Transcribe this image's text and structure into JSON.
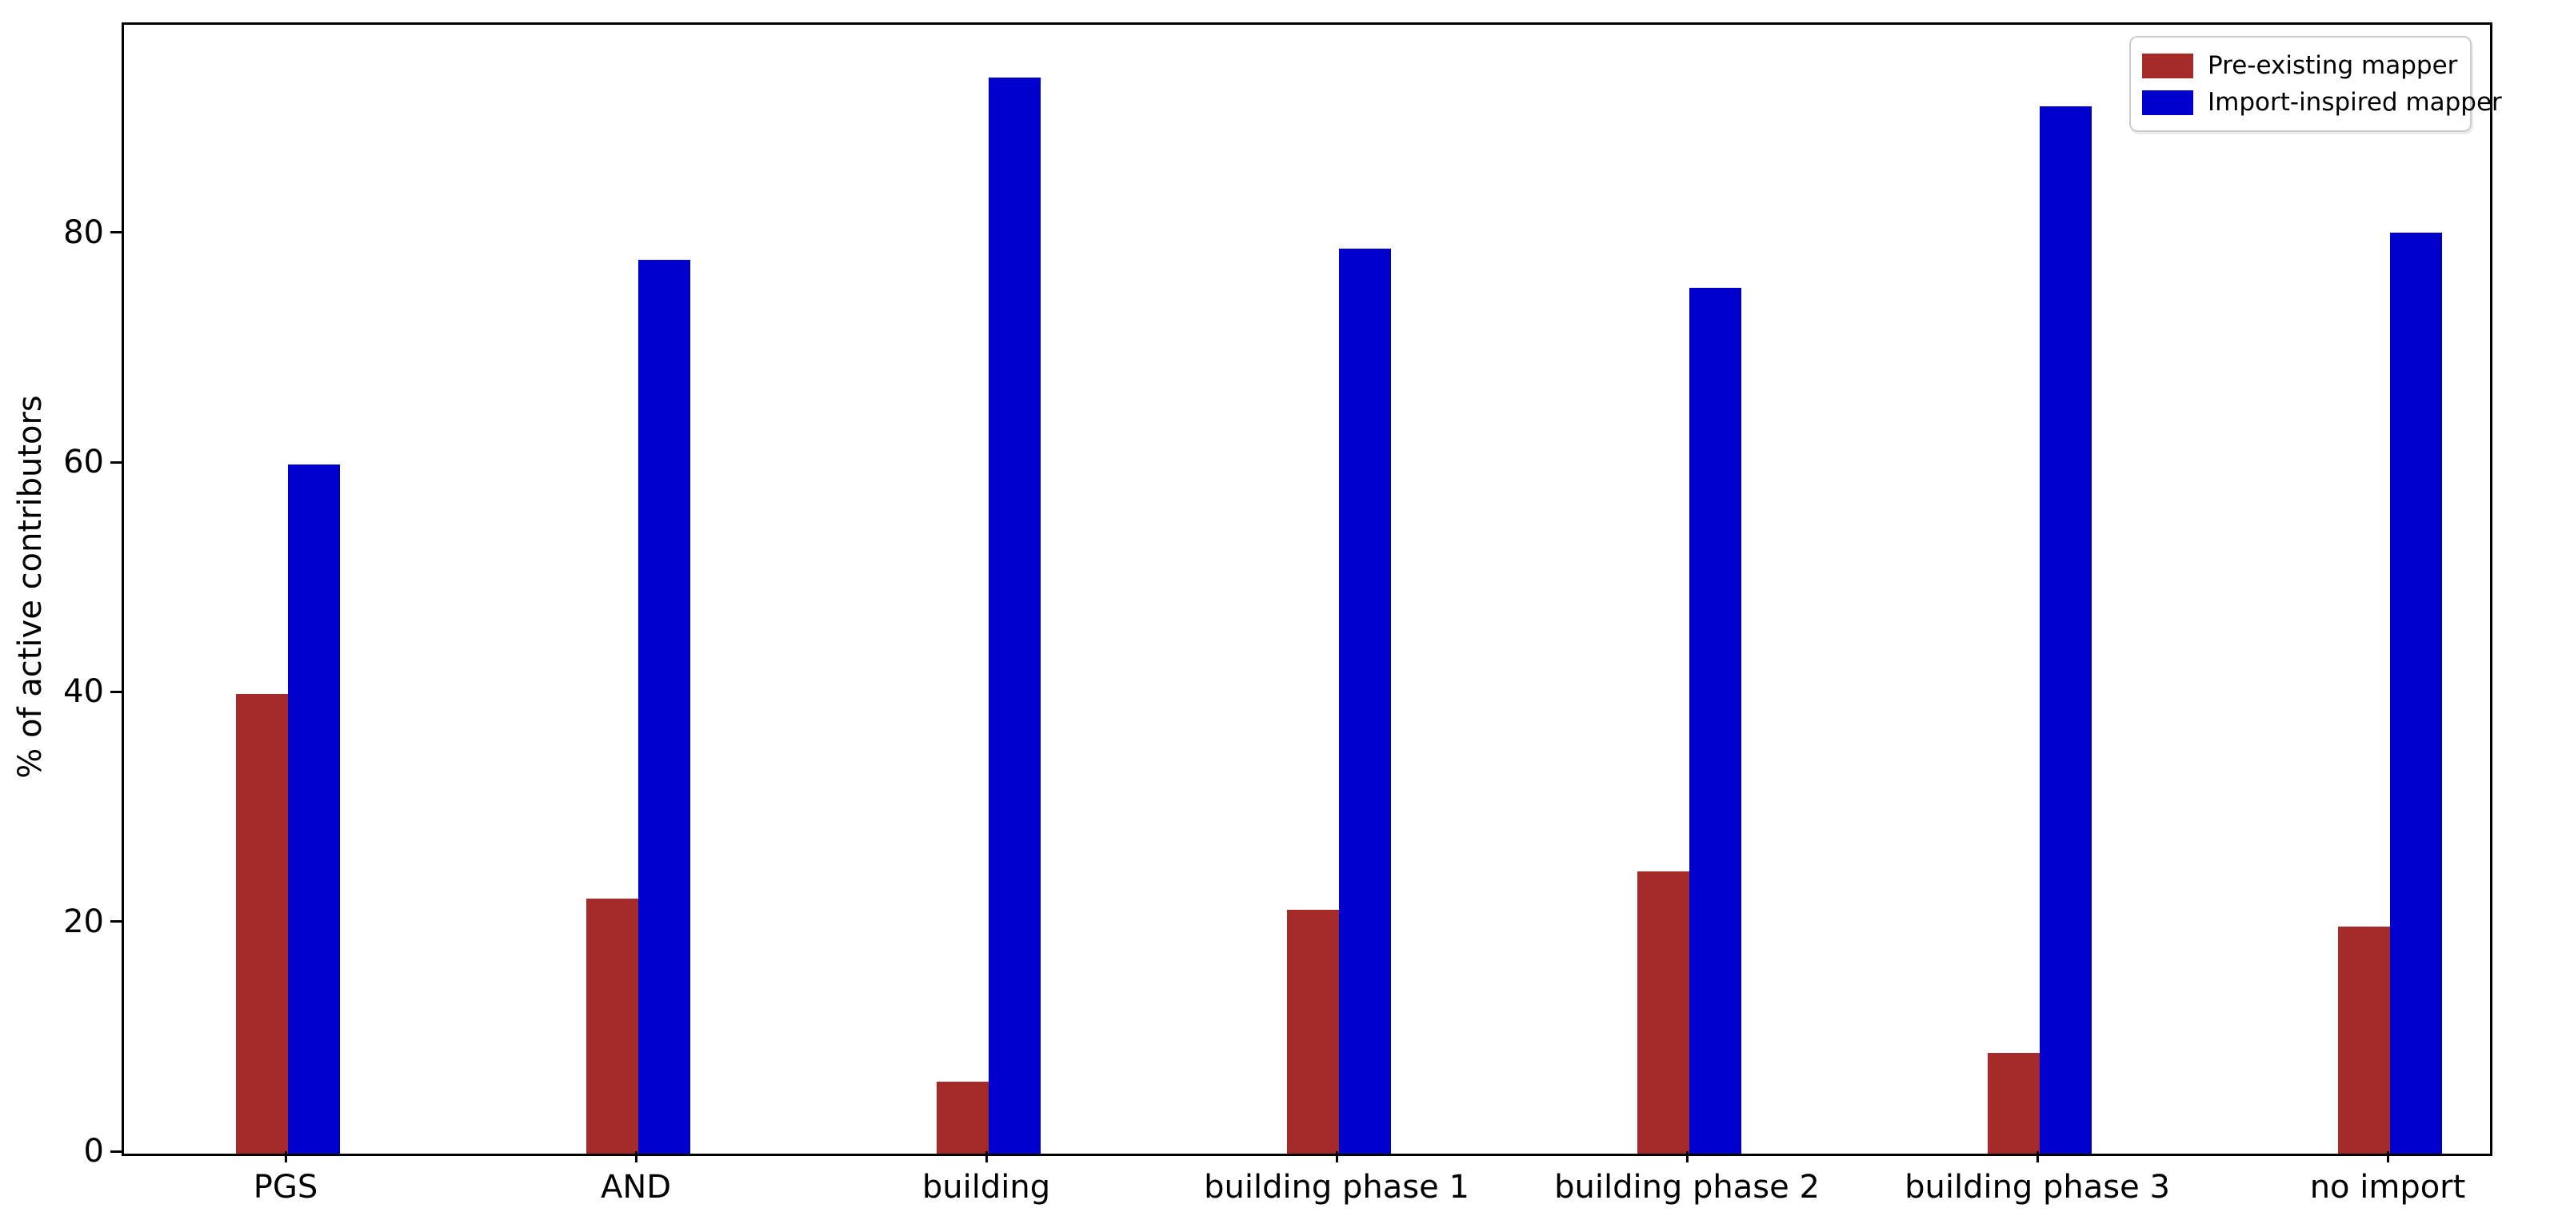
{
  "figure": {
    "background": "#ffffff",
    "axis_color": "#000000"
  },
  "legend": {
    "position": "upper right",
    "items": [
      {
        "label": "Pre-existing mapper",
        "color": "#A52A2A"
      },
      {
        "label": "Import-inspired mapper",
        "color": "#0000CD"
      }
    ]
  },
  "chart_data": {
    "type": "bar",
    "title": "",
    "xlabel": "",
    "ylabel": "% of active contributors",
    "categories": [
      "PGS",
      "AND",
      "building",
      "building phase 1",
      "building phase 2",
      "building phase 3",
      "no import"
    ],
    "series": [
      {
        "name": "Pre-existing mapper",
        "color": "#A52A2A",
        "values": [
          40.0,
          22.2,
          6.3,
          21.2,
          24.6,
          8.8,
          19.8
        ]
      },
      {
        "name": "Import-inspired mapper",
        "color": "#0000CD",
        "values": [
          60.0,
          77.8,
          93.7,
          78.8,
          75.4,
          91.2,
          80.2
        ]
      }
    ],
    "yticks": [
      0,
      20,
      40,
      60,
      80
    ],
    "ylim": [
      0,
      98.3
    ],
    "grid": false,
    "legend_position": "upper right"
  }
}
